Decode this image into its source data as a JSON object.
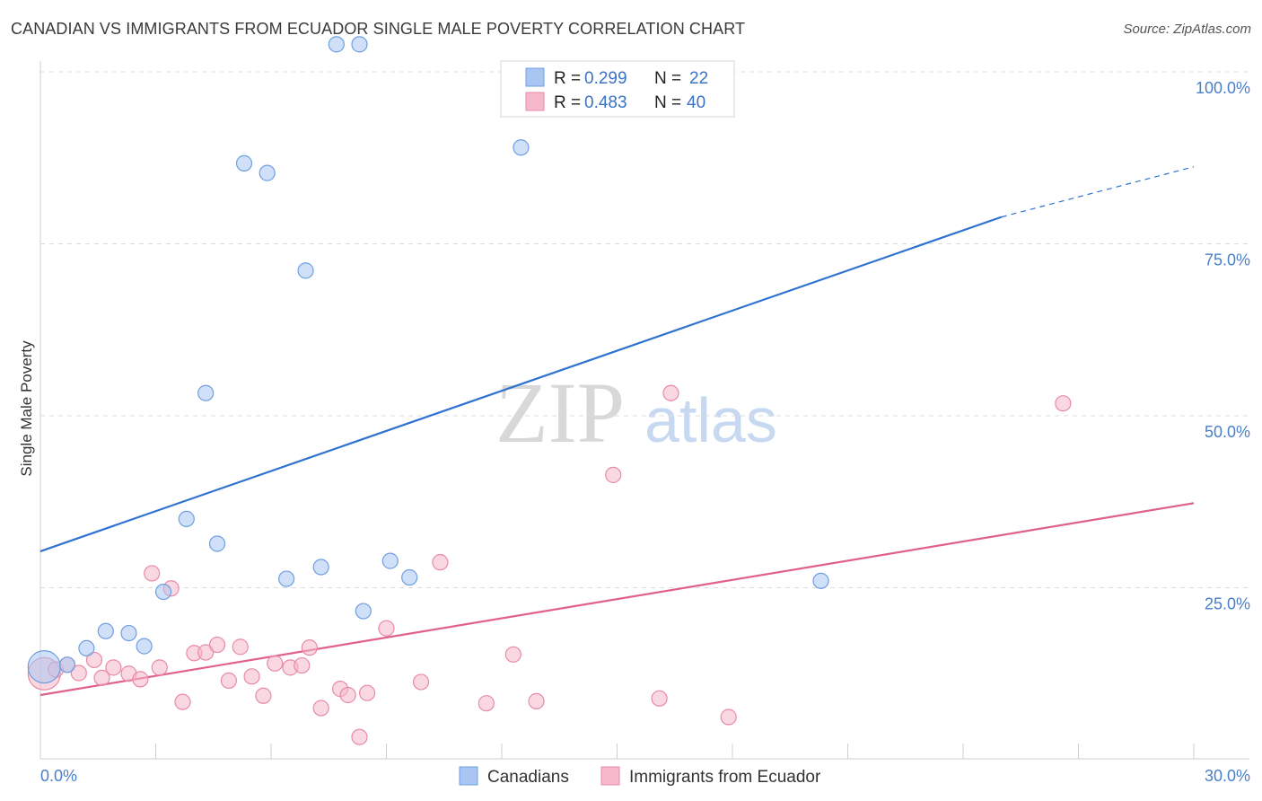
{
  "title": "CANADIAN VS IMMIGRANTS FROM ECUADOR SINGLE MALE POVERTY CORRELATION CHART",
  "source": "Source: ZipAtlas.com",
  "watermark": {
    "zip": "ZIP",
    "atlas": "atlas"
  },
  "legend": {
    "rows": [
      {
        "r_label": "R = ",
        "r_value": "0.299",
        "n_label": "N = ",
        "n_value": "22",
        "color": "#a9c6f2"
      },
      {
        "r_label": "R = ",
        "r_value": "0.483",
        "n_label": "N = ",
        "n_value": "40",
        "color": "#f6b8ca"
      }
    ]
  },
  "chart_data": {
    "type": "scatter",
    "title": "CANADIAN VS IMMIGRANTS FROM ECUADOR SINGLE MALE POVERTY CORRELATION CHART",
    "xlabel": "",
    "ylabel": "Single Male Poverty",
    "xlim": [
      0,
      30
    ],
    "ylim": [
      0,
      100
    ],
    "x_ticks": [
      {
        "value": 0,
        "label": "0.0%"
      },
      {
        "value": 30,
        "label": "30.0%"
      }
    ],
    "y_ticks": [
      {
        "value": 25,
        "label": "25.0%"
      },
      {
        "value": 50,
        "label": "50.0%"
      },
      {
        "value": 75,
        "label": "75.0%"
      },
      {
        "value": 100,
        "label": "100.0%"
      }
    ],
    "grid": true,
    "legend_position": "top-center",
    "series": [
      {
        "name": "Canadians",
        "color": "#a9c6f2",
        "stroke": "#6f9fe0",
        "line_color": "#2f72d0",
        "trend": {
          "x": [
            0,
            25
          ],
          "y": [
            30.3,
            78.9
          ],
          "dashed_to": [
            30,
            86.2
          ]
        },
        "points": [
          {
            "x": 0.1,
            "y": 13.5,
            "big": true
          },
          {
            "x": 0.7,
            "y": 13.8
          },
          {
            "x": 1.2,
            "y": 16.2
          },
          {
            "x": 1.7,
            "y": 18.7
          },
          {
            "x": 2.3,
            "y": 18.4
          },
          {
            "x": 2.7,
            "y": 16.5
          },
          {
            "x": 3.2,
            "y": 24.4
          },
          {
            "x": 3.8,
            "y": 35.0
          },
          {
            "x": 4.3,
            "y": 53.3
          },
          {
            "x": 4.6,
            "y": 31.4
          },
          {
            "x": 5.3,
            "y": 86.7
          },
          {
            "x": 5.9,
            "y": 85.3
          },
          {
            "x": 6.4,
            "y": 26.3
          },
          {
            "x": 6.9,
            "y": 71.1
          },
          {
            "x": 7.3,
            "y": 28.0
          },
          {
            "x": 7.7,
            "y": 104.0
          },
          {
            "x": 8.3,
            "y": 104.0
          },
          {
            "x": 8.4,
            "y": 21.6
          },
          {
            "x": 9.1,
            "y": 28.9
          },
          {
            "x": 9.6,
            "y": 26.5
          },
          {
            "x": 12.5,
            "y": 89.0
          },
          {
            "x": 20.3,
            "y": 26.0
          }
        ]
      },
      {
        "name": "Immigrants from Ecuador",
        "color": "#f6b8ca",
        "stroke": "#e88aa6",
        "line_color": "#e0608c",
        "trend": {
          "x": [
            0,
            30
          ],
          "y": [
            9.4,
            37.3
          ]
        },
        "points": [
          {
            "x": 0.1,
            "y": 12.5,
            "big": true
          },
          {
            "x": 0.4,
            "y": 13.1
          },
          {
            "x": 0.7,
            "y": 13.8
          },
          {
            "x": 1.0,
            "y": 12.6
          },
          {
            "x": 1.4,
            "y": 14.5
          },
          {
            "x": 1.6,
            "y": 11.9
          },
          {
            "x": 1.9,
            "y": 13.4
          },
          {
            "x": 2.3,
            "y": 12.5
          },
          {
            "x": 2.6,
            "y": 11.7
          },
          {
            "x": 2.9,
            "y": 27.1
          },
          {
            "x": 3.1,
            "y": 13.4
          },
          {
            "x": 3.4,
            "y": 24.9
          },
          {
            "x": 3.7,
            "y": 8.4
          },
          {
            "x": 4.0,
            "y": 15.5
          },
          {
            "x": 4.3,
            "y": 15.6
          },
          {
            "x": 4.6,
            "y": 16.7
          },
          {
            "x": 4.9,
            "y": 11.5
          },
          {
            "x": 5.2,
            "y": 16.4
          },
          {
            "x": 5.5,
            "y": 12.1
          },
          {
            "x": 5.8,
            "y": 9.3
          },
          {
            "x": 6.1,
            "y": 14.0
          },
          {
            "x": 6.5,
            "y": 13.4
          },
          {
            "x": 6.8,
            "y": 13.7
          },
          {
            "x": 7.0,
            "y": 16.3
          },
          {
            "x": 7.3,
            "y": 7.5
          },
          {
            "x": 7.8,
            "y": 10.3
          },
          {
            "x": 8.0,
            "y": 9.4
          },
          {
            "x": 8.3,
            "y": 3.3
          },
          {
            "x": 8.5,
            "y": 9.7
          },
          {
            "x": 9.0,
            "y": 19.1
          },
          {
            "x": 9.9,
            "y": 11.3
          },
          {
            "x": 10.4,
            "y": 28.7
          },
          {
            "x": 11.6,
            "y": 8.2
          },
          {
            "x": 12.3,
            "y": 15.3
          },
          {
            "x": 12.9,
            "y": 8.5
          },
          {
            "x": 14.9,
            "y": 41.4
          },
          {
            "x": 16.1,
            "y": 8.9
          },
          {
            "x": 16.4,
            "y": 53.3
          },
          {
            "x": 17.9,
            "y": 6.2
          },
          {
            "x": 26.6,
            "y": 51.8
          }
        ]
      }
    ]
  }
}
